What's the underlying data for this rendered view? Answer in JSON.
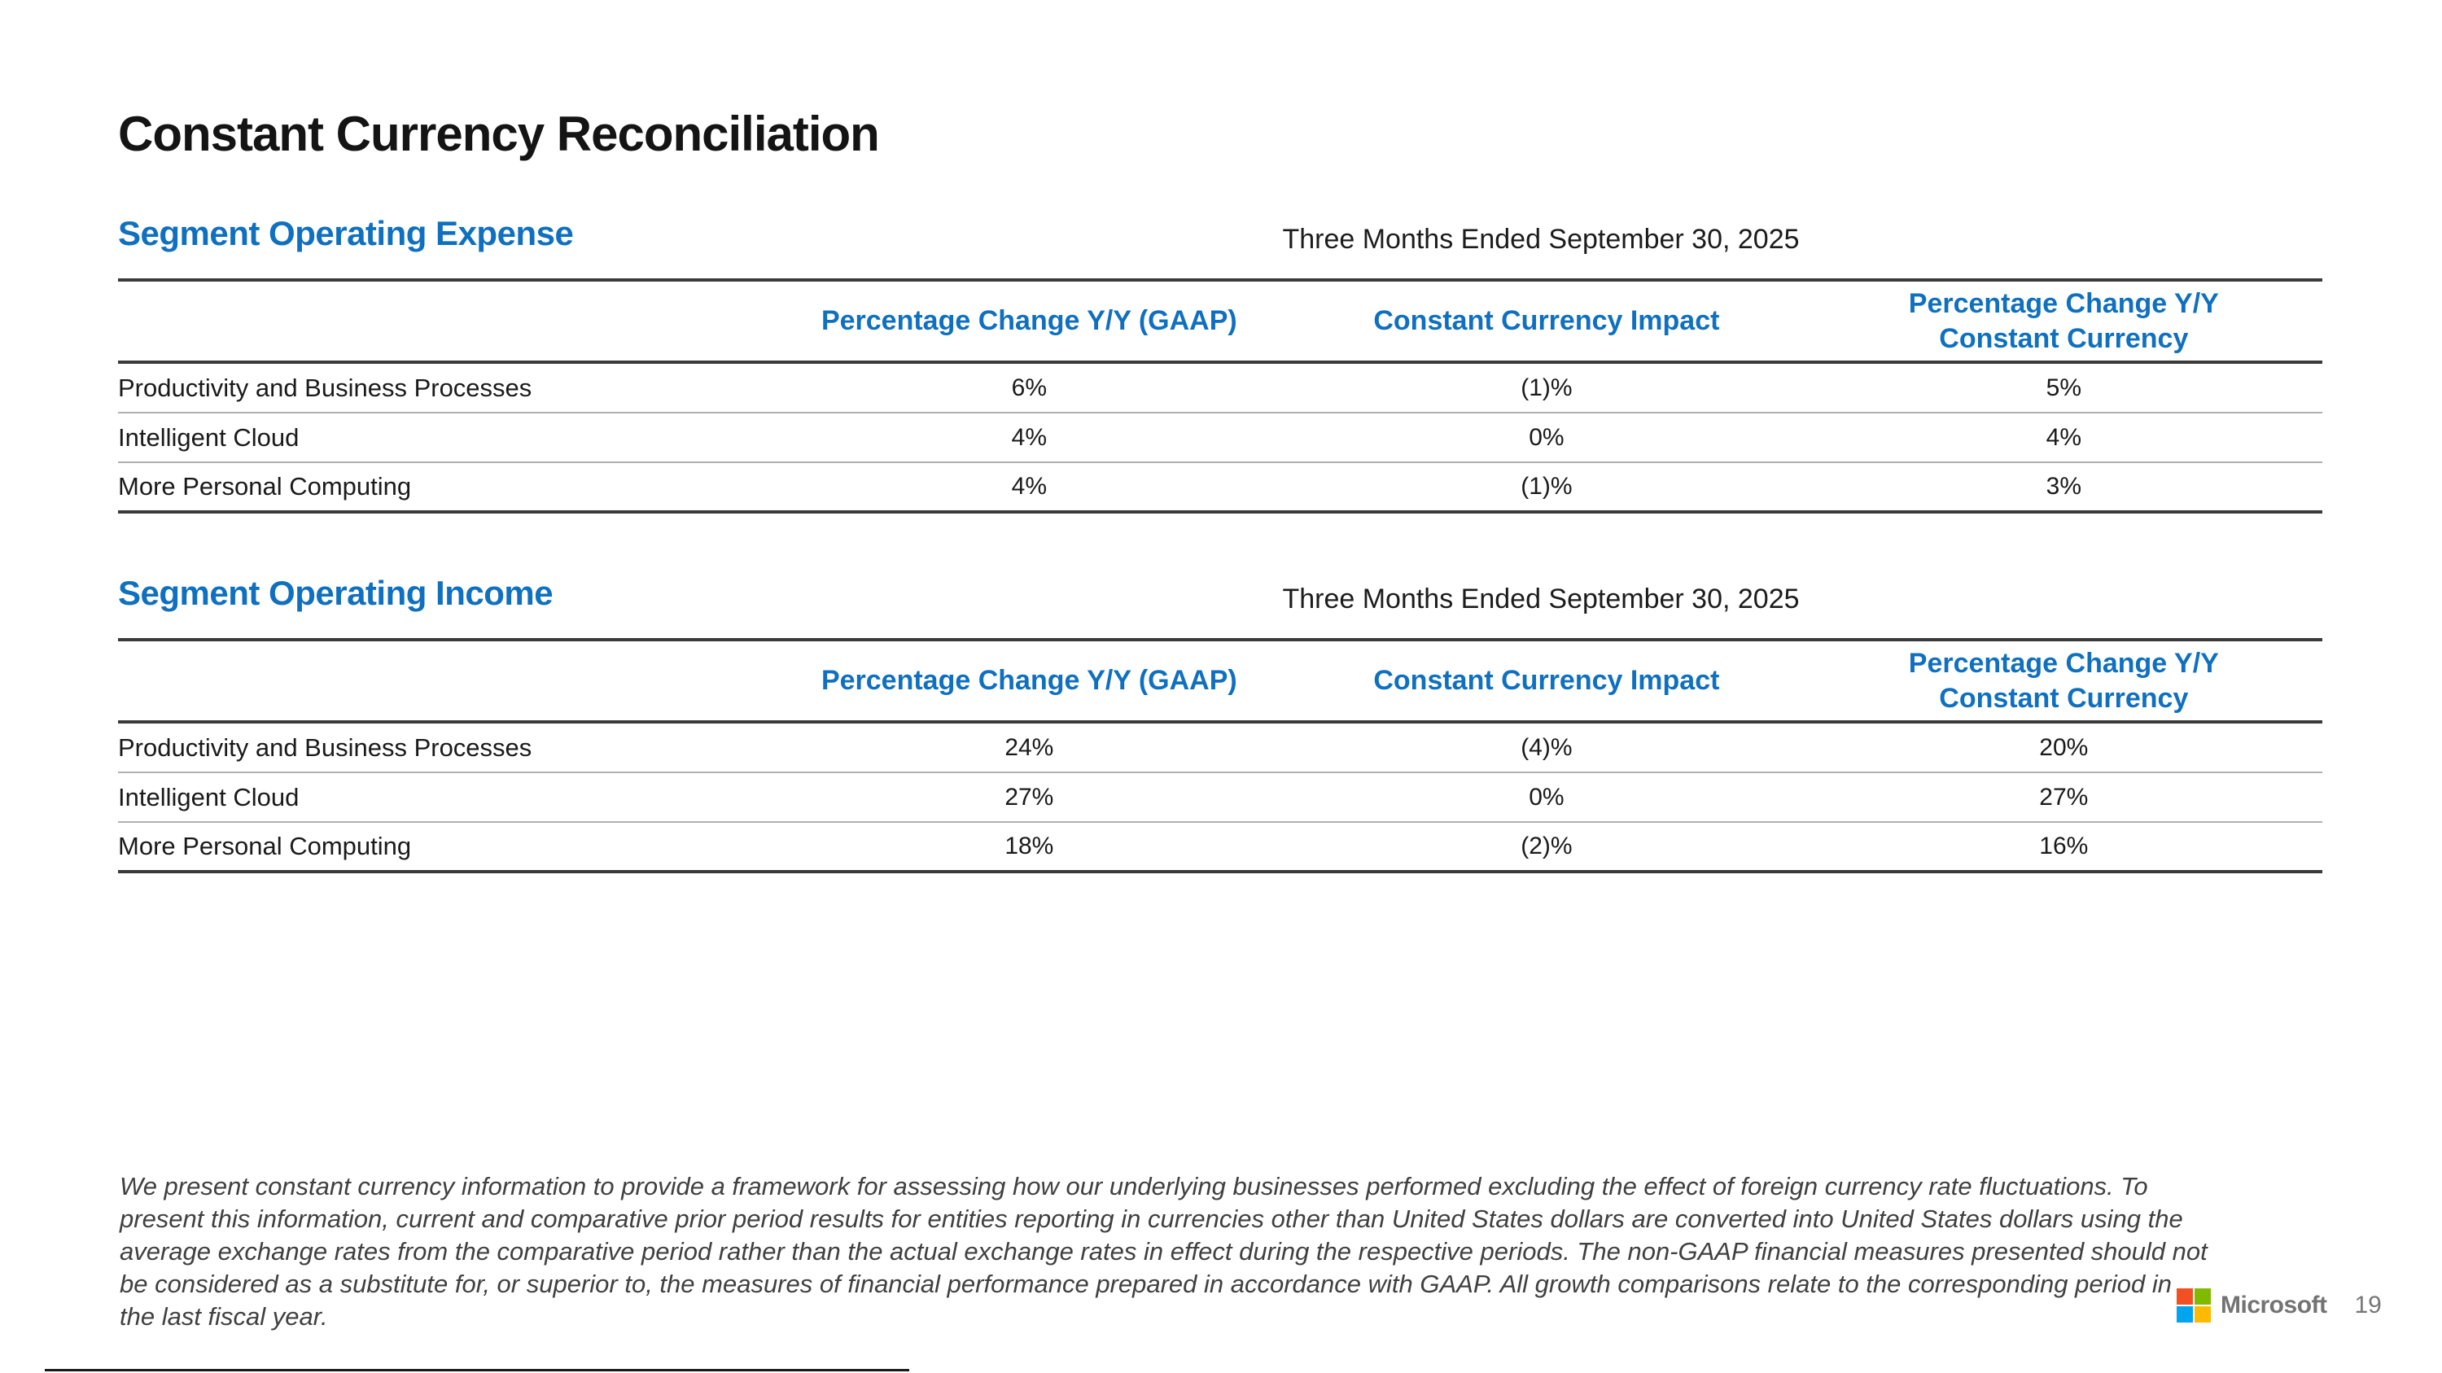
{
  "slide": {
    "title": "Constant Currency Reconciliation",
    "brand": "Microsoft",
    "page_number": "19"
  },
  "sections": [
    {
      "heading": "Segment Operating Expense",
      "period": "Three Months Ended September 30, 2025",
      "columns": [
        "Percentage Change Y/Y (GAAP)",
        "Constant Currency Impact",
        "Percentage Change Y/Y\nConstant Currency"
      ],
      "rows": [
        {
          "label": "Productivity and Business Processes",
          "gaap": "6%",
          "impact": "(1)%",
          "cc": "5%"
        },
        {
          "label": "Intelligent Cloud",
          "gaap": "4%",
          "impact": "0%",
          "cc": "4%"
        },
        {
          "label": "More Personal Computing",
          "gaap": "4%",
          "impact": "(1)%",
          "cc": "3%"
        }
      ]
    },
    {
      "heading": "Segment Operating Income",
      "period": "Three Months Ended September 30, 2025",
      "columns": [
        "Percentage Change Y/Y (GAAP)",
        "Constant Currency Impact",
        "Percentage Change Y/Y\nConstant Currency"
      ],
      "rows": [
        {
          "label": "Productivity and Business Processes",
          "gaap": "24%",
          "impact": "(4)%",
          "cc": "20%"
        },
        {
          "label": "Intelligent Cloud",
          "gaap": "27%",
          "impact": "0%",
          "cc": "27%"
        },
        {
          "label": "More Personal Computing",
          "gaap": "18%",
          "impact": "(2)%",
          "cc": "16%"
        }
      ]
    }
  ],
  "footnote": "We present constant currency information to provide a framework for assessing how our underlying businesses performed excluding the effect of foreign currency rate fluctuations. To present this information, current and comparative prior period results for entities reporting in currencies other than United States dollars are converted into United States dollars using the average exchange rates from the comparative period rather than the actual exchange rates in effect during the respective periods. The non-GAAP financial measures presented should not be considered as a substitute for, or superior to, the measures of financial performance prepared in accordance with GAAP. All growth comparisons relate to the corresponding period in the last fiscal year.",
  "colors": {
    "accent_blue": "#1070C0",
    "rule_dark": "#3a3a3a",
    "rule_light": "#b0b0b0",
    "logo_red": "#F25022",
    "logo_green": "#7FBA00",
    "logo_blue": "#00A4EF",
    "logo_yellow": "#FFB900",
    "brand_gray": "#737373"
  }
}
